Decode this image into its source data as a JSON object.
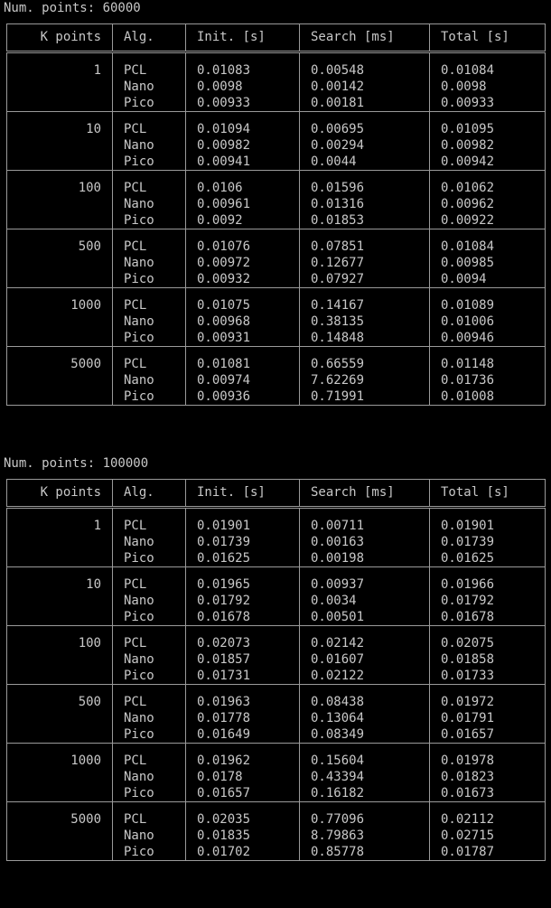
{
  "columns": [
    "K points",
    "Alg.",
    "Init. [s]",
    "Search [ms]",
    "Total [s]"
  ],
  "sections": [
    {
      "title": "Num. points: 60000",
      "rows": [
        {
          "k": "1",
          "algs": [
            "PCL",
            "Nano",
            "Pico"
          ],
          "init": [
            "0.01083",
            "0.0098",
            "0.00933"
          ],
          "search": [
            "0.00548",
            "0.00142",
            "0.00181"
          ],
          "total": [
            "0.01084",
            "0.0098",
            "0.00933"
          ]
        },
        {
          "k": "10",
          "algs": [
            "PCL",
            "Nano",
            "Pico"
          ],
          "init": [
            "0.01094",
            "0.00982",
            "0.00941"
          ],
          "search": [
            "0.00695",
            "0.00294",
            "0.0044"
          ],
          "total": [
            "0.01095",
            "0.00982",
            "0.00942"
          ]
        },
        {
          "k": "100",
          "algs": [
            "PCL",
            "Nano",
            "Pico"
          ],
          "init": [
            "0.0106",
            "0.00961",
            "0.0092"
          ],
          "search": [
            "0.01596",
            "0.01316",
            "0.01853"
          ],
          "total": [
            "0.01062",
            "0.00962",
            "0.00922"
          ]
        },
        {
          "k": "500",
          "algs": [
            "PCL",
            "Nano",
            "Pico"
          ],
          "init": [
            "0.01076",
            "0.00972",
            "0.00932"
          ],
          "search": [
            "0.07851",
            "0.12677",
            "0.07927"
          ],
          "total": [
            "0.01084",
            "0.00985",
            "0.0094"
          ]
        },
        {
          "k": "1000",
          "algs": [
            "PCL",
            "Nano",
            "Pico"
          ],
          "init": [
            "0.01075",
            "0.00968",
            "0.00931"
          ],
          "search": [
            "0.14167",
            "0.38135",
            "0.14848"
          ],
          "total": [
            "0.01089",
            "0.01006",
            "0.00946"
          ]
        },
        {
          "k": "5000",
          "algs": [
            "PCL",
            "Nano",
            "Pico"
          ],
          "init": [
            "0.01081",
            "0.00974",
            "0.00936"
          ],
          "search": [
            "0.66559",
            "7.62269",
            "0.71991"
          ],
          "total": [
            "0.01148",
            "0.01736",
            "0.01008"
          ]
        }
      ]
    },
    {
      "title": "Num. points: 100000",
      "rows": [
        {
          "k": "1",
          "algs": [
            "PCL",
            "Nano",
            "Pico"
          ],
          "init": [
            "0.01901",
            "0.01739",
            "0.01625"
          ],
          "search": [
            "0.00711",
            "0.00163",
            "0.00198"
          ],
          "total": [
            "0.01901",
            "0.01739",
            "0.01625"
          ]
        },
        {
          "k": "10",
          "algs": [
            "PCL",
            "Nano",
            "Pico"
          ],
          "init": [
            "0.01965",
            "0.01792",
            "0.01678"
          ],
          "search": [
            "0.00937",
            "0.0034",
            "0.00501"
          ],
          "total": [
            "0.01966",
            "0.01792",
            "0.01678"
          ]
        },
        {
          "k": "100",
          "algs": [
            "PCL",
            "Nano",
            "Pico"
          ],
          "init": [
            "0.02073",
            "0.01857",
            "0.01731"
          ],
          "search": [
            "0.02142",
            "0.01607",
            "0.02122"
          ],
          "total": [
            "0.02075",
            "0.01858",
            "0.01733"
          ]
        },
        {
          "k": "500",
          "algs": [
            "PCL",
            "Nano",
            "Pico"
          ],
          "init": [
            "0.01963",
            "0.01778",
            "0.01649"
          ],
          "search": [
            "0.08438",
            "0.13064",
            "0.08349"
          ],
          "total": [
            "0.01972",
            "0.01791",
            "0.01657"
          ]
        },
        {
          "k": "1000",
          "algs": [
            "PCL",
            "Nano",
            "Pico"
          ],
          "init": [
            "0.01962",
            "0.0178",
            "0.01657"
          ],
          "search": [
            "0.15604",
            "0.43394",
            "0.16182"
          ],
          "total": [
            "0.01978",
            "0.01823",
            "0.01673"
          ]
        },
        {
          "k": "5000",
          "algs": [
            "PCL",
            "Nano",
            "Pico"
          ],
          "init": [
            "0.02035",
            "0.01835",
            "0.01702"
          ],
          "search": [
            "0.77096",
            "8.79863",
            "0.85778"
          ],
          "total": [
            "0.02112",
            "0.02715",
            "0.01787"
          ]
        }
      ]
    }
  ]
}
